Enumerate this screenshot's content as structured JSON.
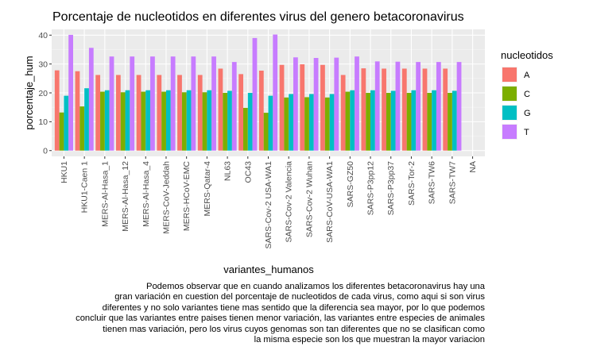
{
  "chart_data": {
    "type": "bar",
    "title": "Porcentaje de nucleotidos en diferentes virus del genero betacoronavirus",
    "xlabel": "variantes_humanos",
    "ylabel": "porcentaje_hum",
    "ylim": [
      -2,
      42
    ],
    "yticks": [
      0,
      10,
      20,
      30,
      40
    ],
    "grid": true,
    "legend": {
      "title": "nucleotidos",
      "position": "right"
    },
    "categories": [
      "HKU1",
      "HKU1-Caen 1",
      "MERS-Al-Hasa_1",
      "MERS-Al-Hasa_12",
      "MERS-Al-Hasa_4",
      "MERS-CoV-Jeddah",
      "MERS-HCoV-EMC",
      "MERS-Qatar-4",
      "NL63",
      "OC43",
      "SARS-Cov-2 USA-WA1",
      "SARS-Cov-2 Valencia",
      "SARS-Cov-2 Wuhan",
      "SARS-CoV-USA-WA1",
      "SARS-GZ50",
      "SARS-P3pp12",
      "SARS-P3pp37",
      "SARS-Tor-2",
      "SARS-TW6",
      "SARS-TW7",
      "NA"
    ],
    "series": [
      {
        "name": "A",
        "color": "#F8766D",
        "values": [
          27.8,
          27.5,
          26.2,
          26.2,
          26.2,
          26.2,
          26.2,
          26.2,
          28.4,
          26.5,
          27.7,
          29.7,
          29.9,
          29.7,
          26.2,
          28.5,
          28.4,
          28.4,
          28.4,
          28.4,
          null
        ]
      },
      {
        "name": "C",
        "color": "#7CAE00",
        "values": [
          13.2,
          15.3,
          20.4,
          20.2,
          20.4,
          20.4,
          20.2,
          20.2,
          20.0,
          14.8,
          13.1,
          18.4,
          18.5,
          18.4,
          20.4,
          20.0,
          20.0,
          20.0,
          20.0,
          20.0,
          null
        ]
      },
      {
        "name": "G",
        "color": "#00BFC4",
        "values": [
          19.0,
          21.6,
          20.9,
          20.9,
          20.9,
          20.9,
          20.9,
          20.9,
          20.7,
          20.0,
          19.0,
          19.6,
          19.6,
          19.6,
          20.9,
          20.9,
          20.7,
          20.9,
          20.9,
          20.7,
          null
        ]
      },
      {
        "name": "T",
        "color": "#C77CFF",
        "values": [
          40.1,
          35.6,
          32.6,
          32.6,
          32.6,
          32.6,
          32.6,
          32.6,
          30.7,
          39.0,
          40.2,
          32.3,
          32.1,
          32.2,
          32.6,
          30.9,
          30.8,
          30.7,
          30.7,
          30.7,
          null
        ]
      }
    ]
  },
  "caption_lines": [
    "Podemos observar que en cuando analizamos los diferentes betacoronavirus hay una",
    "gran variación en cuestion del porcentaje de nucleotidos de cada virus, como aqui si son virus",
    "diferentes y no solo variantes tiene mas sentido que la diferencia sea mayor, por lo que podemos",
    "concluir que las variantes entre paises tienen menor variación, las variantes entre especies de animales",
    "tienen mas variación, pero los virus cuyos genomas son tan diferentes que no se clasifican como",
    "la misma especie  son los que muestran la mayor variacion"
  ]
}
